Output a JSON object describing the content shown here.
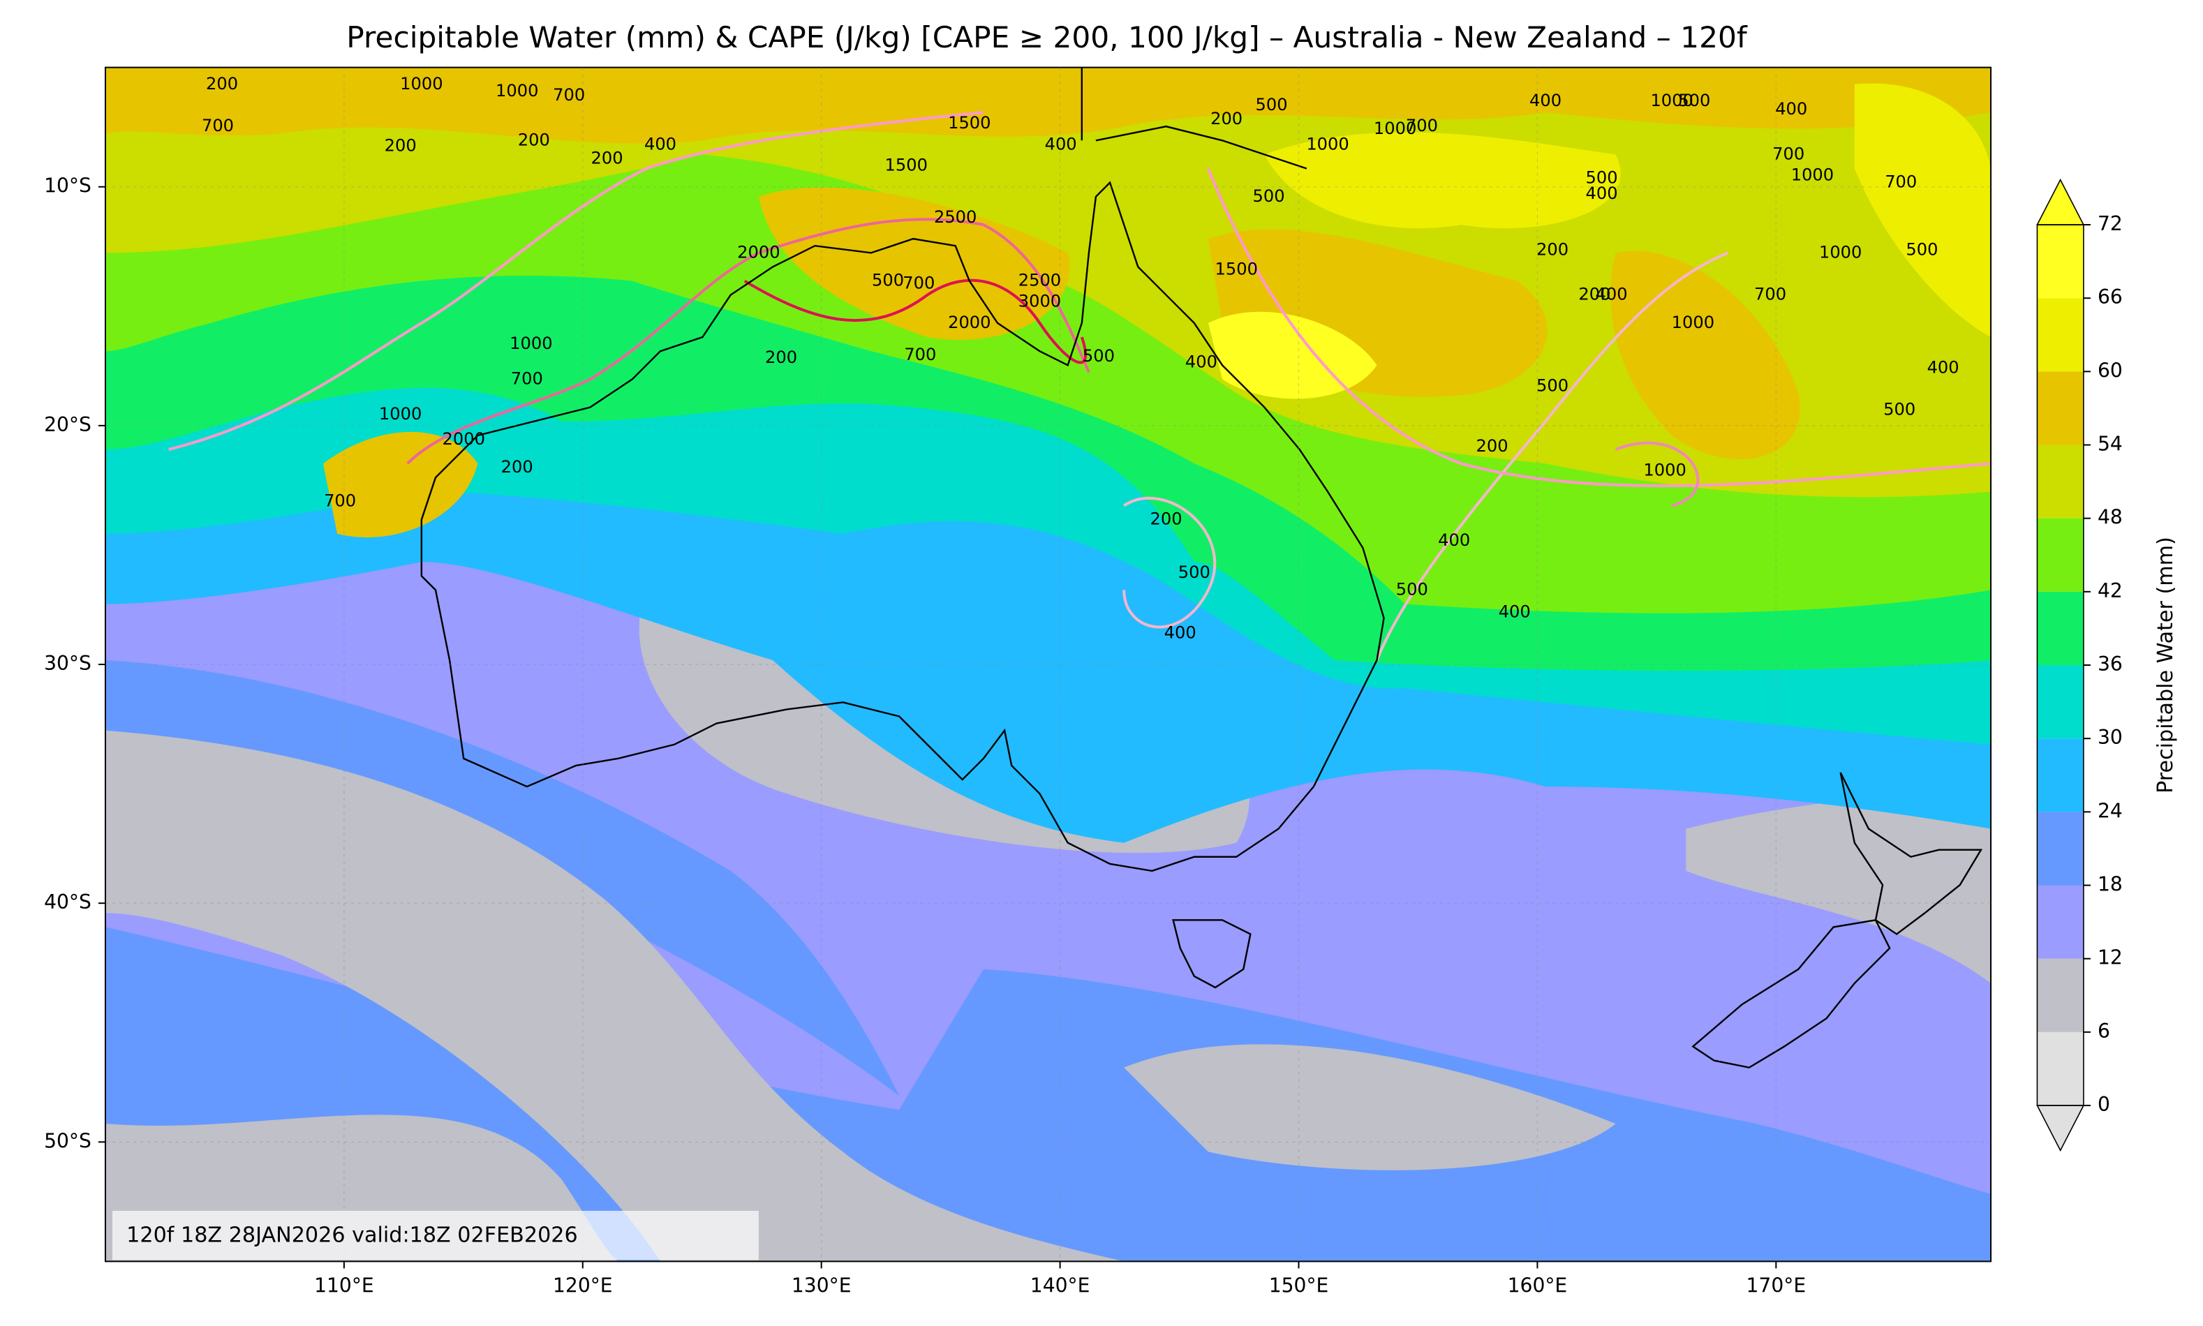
{
  "title": "Precipitable Water (mm) & CAPE (J/kg) [CAPE ≥ 200, 100 J/kg] – Australia - New Zealand – 120f",
  "map": {
    "xlim": [
      100,
      179
    ],
    "ylim": [
      -55,
      -5
    ],
    "lon_ticks": [
      {
        "value": 110,
        "label": "110°E"
      },
      {
        "value": 120,
        "label": "120°E"
      },
      {
        "value": 130,
        "label": "130°E"
      },
      {
        "value": 140,
        "label": "140°E"
      },
      {
        "value": 150,
        "label": "150°E"
      },
      {
        "value": 160,
        "label": "160°E"
      },
      {
        "value": 170,
        "label": "170°E"
      }
    ],
    "lat_ticks": [
      {
        "value": -10,
        "label": "10°S"
      },
      {
        "value": -20,
        "label": "20°S"
      },
      {
        "value": -30,
        "label": "30°S"
      },
      {
        "value": -40,
        "label": "40°S"
      },
      {
        "value": -50,
        "label": "50°S"
      }
    ],
    "grid": true,
    "annotation": "120f 18Z 28JAN2026 valid:18Z 02FEB2026",
    "contour_labels": [
      200,
      1000,
      1000,
      700,
      700,
      200,
      200,
      400,
      200,
      1500,
      1500,
      400,
      500,
      1500,
      2000,
      2500,
      500,
      700,
      2500,
      3000,
      2000,
      200,
      700,
      500,
      400,
      1000,
      700,
      1000,
      2000,
      200,
      700,
      200,
      500,
      400,
      500,
      400,
      400,
      200,
      500,
      200,
      200,
      400,
      1000,
      700,
      1000,
      500,
      400,
      500,
      1000,
      400,
      500,
      700,
      1000,
      700,
      400,
      1000,
      500,
      400,
      700,
      1000,
      500,
      200,
      1000
    ]
  },
  "colorbar": {
    "label": "Precipitable Water (mm)",
    "levels": [
      0,
      6,
      12,
      18,
      24,
      30,
      36,
      42,
      48,
      54,
      60,
      66,
      72
    ],
    "colors": [
      "#e0e0e0",
      "#bfc0c8",
      "#9a9cff",
      "#6699ff",
      "#22bbff",
      "#00ddcc",
      "#11ee66",
      "#77ee11",
      "#ccdd00",
      "#e6c400",
      "#eeee00",
      "#ffff22"
    ]
  }
}
